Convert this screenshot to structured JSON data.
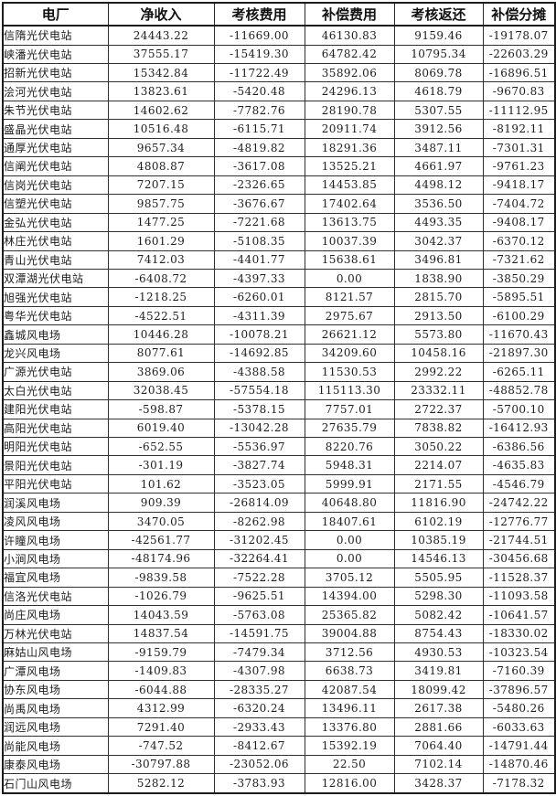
{
  "table": {
    "columns": [
      "电厂",
      "净收入",
      "考核费用",
      "补偿费用",
      "考核返还",
      "补偿分摊"
    ],
    "rows": [
      {
        "name": "信隋光伏电站",
        "values": [
          "24443.22",
          "-11669.00",
          "46130.83",
          "9159.46",
          "-19178.07"
        ]
      },
      {
        "name": "峡潘光伏电站",
        "values": [
          "37555.17",
          "-15419.30",
          "64782.42",
          "10795.34",
          "-22603.29"
        ]
      },
      {
        "name": "招新光伏电站",
        "values": [
          "15342.84",
          "-11722.49",
          "35892.06",
          "8069.78",
          "-16896.51"
        ]
      },
      {
        "name": "浍河光伏电站",
        "values": [
          "13823.61",
          "-5420.48",
          "24296.13",
          "4618.79",
          "-9670.83"
        ]
      },
      {
        "name": "朱节光伏电站",
        "values": [
          "14602.62",
          "-7782.76",
          "28190.78",
          "5307.55",
          "-11112.95"
        ]
      },
      {
        "name": "盛晶光伏电站",
        "values": [
          "10516.48",
          "-6115.71",
          "20911.74",
          "3912.56",
          "-8192.11"
        ]
      },
      {
        "name": "通厚光伏电站",
        "values": [
          "9657.34",
          "-4819.82",
          "18291.36",
          "3487.11",
          "-7301.31"
        ]
      },
      {
        "name": "信阐光伏电站",
        "values": [
          "4808.87",
          "-3617.08",
          "13525.21",
          "4661.97",
          "-9761.23"
        ]
      },
      {
        "name": "信岗光伏电站",
        "values": [
          "7207.15",
          "-2326.65",
          "14453.85",
          "4498.12",
          "-9418.17"
        ]
      },
      {
        "name": "信塑光伏电站",
        "values": [
          "9857.75",
          "-3676.67",
          "17402.64",
          "3536.50",
          "-7404.72"
        ]
      },
      {
        "name": "金弘光伏电站",
        "values": [
          "1477.25",
          "-7221.68",
          "13613.75",
          "4493.35",
          "-9408.17"
        ]
      },
      {
        "name": "林庄光伏电站",
        "values": [
          "1601.29",
          "-5108.35",
          "10037.39",
          "3042.37",
          "-6370.12"
        ]
      },
      {
        "name": "青山光伏电站",
        "values": [
          "7412.03",
          "-4401.77",
          "15638.61",
          "3496.81",
          "-7321.62"
        ]
      },
      {
        "name": "双潭湖光伏电站",
        "values": [
          "-6408.72",
          "-4397.33",
          "0.00",
          "1838.90",
          "-3850.29"
        ]
      },
      {
        "name": "旭强光伏电站",
        "values": [
          "-1218.25",
          "-6260.01",
          "8121.57",
          "2815.70",
          "-5895.51"
        ]
      },
      {
        "name": "粤华光伏电站",
        "values": [
          "-4522.51",
          "-4311.39",
          "2975.67",
          "2913.50",
          "-6100.29"
        ]
      },
      {
        "name": "鑫城风电场",
        "values": [
          "10446.28",
          "-10078.21",
          "26621.12",
          "5573.80",
          "-11670.43"
        ]
      },
      {
        "name": "龙兴风电场",
        "values": [
          "8077.61",
          "-14692.85",
          "34209.60",
          "10458.16",
          "-21897.30"
        ]
      },
      {
        "name": "广源光伏电站",
        "values": [
          "3869.06",
          "-4388.58",
          "11530.53",
          "2992.22",
          "-6265.11"
        ]
      },
      {
        "name": "太白光伏电站",
        "values": [
          "32038.45",
          "-57554.18",
          "115113.30",
          "23332.11",
          "-48852.78"
        ]
      },
      {
        "name": "建阳光伏电站",
        "values": [
          "-598.87",
          "-5378.15",
          "7757.01",
          "2722.37",
          "-5700.10"
        ]
      },
      {
        "name": "高阳光伏电站",
        "values": [
          "6019.40",
          "-13042.28",
          "27635.79",
          "7838.82",
          "-16412.93"
        ]
      },
      {
        "name": "明阳光伏电站",
        "values": [
          "-652.55",
          "-5536.97",
          "8220.76",
          "3050.22",
          "-6386.56"
        ]
      },
      {
        "name": "景阳光伏电站",
        "values": [
          "-301.19",
          "-3827.74",
          "5948.31",
          "2214.07",
          "-4635.83"
        ]
      },
      {
        "name": "平阳光伏电站",
        "values": [
          "101.62",
          "-3523.05",
          "5999.91",
          "2171.55",
          "-4546.79"
        ]
      },
      {
        "name": "润溪风电场",
        "values": [
          "909.39",
          "-26814.09",
          "40648.80",
          "11816.90",
          "-24742.22"
        ]
      },
      {
        "name": "凌风风电场",
        "values": [
          "3470.05",
          "-8262.98",
          "18407.61",
          "6102.19",
          "-12776.77"
        ]
      },
      {
        "name": "许瞳风电场",
        "values": [
          "-42561.77",
          "-31202.45",
          "0.00",
          "10385.19",
          "-21744.51"
        ]
      },
      {
        "name": "小涧风电场",
        "values": [
          "-48174.96",
          "-32264.41",
          "0.00",
          "14546.13",
          "-30456.68"
        ]
      },
      {
        "name": "福宜风电场",
        "values": [
          "-9839.58",
          "-7522.28",
          "3705.12",
          "5505.95",
          "-11528.37"
        ]
      },
      {
        "name": "信洛光伏电站",
        "values": [
          "-1026.79",
          "-9625.51",
          "14394.00",
          "5298.30",
          "-11093.58"
        ]
      },
      {
        "name": "尚庄风电场",
        "values": [
          "14043.59",
          "-5763.08",
          "25365.82",
          "5082.42",
          "-10641.57"
        ]
      },
      {
        "name": "万林光伏电站",
        "values": [
          "14837.54",
          "-14591.75",
          "39004.88",
          "8754.43",
          "-18330.02"
        ]
      },
      {
        "name": "麻姑山风电场",
        "values": [
          "-9159.79",
          "-7479.34",
          "3712.56",
          "4930.53",
          "-10323.54"
        ]
      },
      {
        "name": "广潭风电场",
        "values": [
          "-1409.83",
          "-4307.98",
          "6638.73",
          "3419.81",
          "-7160.39"
        ]
      },
      {
        "name": "协东风电场",
        "values": [
          "-6044.88",
          "-28335.27",
          "42087.54",
          "18099.42",
          "-37896.57"
        ]
      },
      {
        "name": "尚禹风电场",
        "values": [
          "4312.99",
          "-6320.24",
          "13496.11",
          "2617.38",
          "-5480.26"
        ]
      },
      {
        "name": "润远风电场",
        "values": [
          "7291.40",
          "-2933.43",
          "13376.80",
          "2881.66",
          "-6033.63"
        ]
      },
      {
        "name": "尚能风电场",
        "values": [
          "-747.52",
          "-8412.67",
          "15392.19",
          "7064.40",
          "-14791.44"
        ]
      },
      {
        "name": "康泰风电场",
        "values": [
          "-30797.88",
          "-23052.06",
          "22.50",
          "7102.14",
          "-14870.46"
        ]
      },
      {
        "name": "石门山风电场",
        "values": [
          "5282.12",
          "-3783.93",
          "12816.00",
          "3428.37",
          "-7178.32"
        ]
      }
    ]
  }
}
